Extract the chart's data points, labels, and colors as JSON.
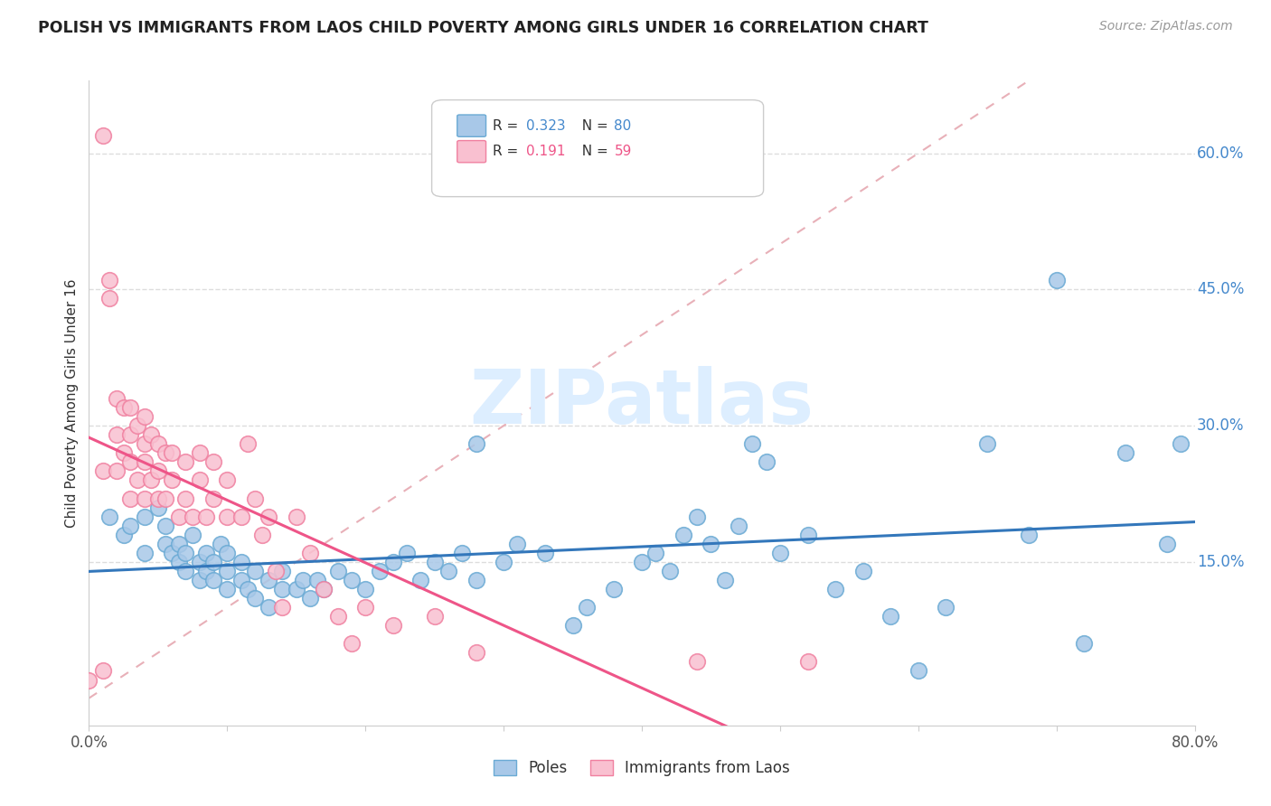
{
  "title": "POLISH VS IMMIGRANTS FROM LAOS CHILD POVERTY AMONG GIRLS UNDER 16 CORRELATION CHART",
  "source": "Source: ZipAtlas.com",
  "ylabel": "Child Poverty Among Girls Under 16",
  "xlim": [
    0.0,
    0.8
  ],
  "ylim": [
    -0.03,
    0.68
  ],
  "yticks_right": [
    0.15,
    0.3,
    0.45,
    0.6
  ],
  "ytick_right_labels": [
    "15.0%",
    "30.0%",
    "45.0%",
    "60.0%"
  ],
  "legend1_label": "Poles",
  "legend2_label": "Immigrants from Laos",
  "R1": "0.323",
  "N1": "80",
  "R2": "0.191",
  "N2": "59",
  "blue_scatter_color": "#a8c8e8",
  "blue_edge_color": "#6aaad4",
  "pink_scatter_color": "#f9c0d0",
  "pink_edge_color": "#f080a0",
  "blue_line_color": "#3377bb",
  "pink_line_color": "#ee5588",
  "diag_line_color": "#e8b0b8",
  "watermark_color": "#ddeeff",
  "grid_color": "#dddddd",
  "right_axis_color": "#4488cc",
  "watermark": "ZIPatlas",
  "poles_x": [
    0.015,
    0.025,
    0.03,
    0.04,
    0.04,
    0.05,
    0.055,
    0.055,
    0.06,
    0.065,
    0.065,
    0.07,
    0.07,
    0.075,
    0.08,
    0.08,
    0.085,
    0.085,
    0.09,
    0.09,
    0.095,
    0.1,
    0.1,
    0.1,
    0.11,
    0.11,
    0.115,
    0.12,
    0.12,
    0.13,
    0.13,
    0.14,
    0.14,
    0.15,
    0.155,
    0.16,
    0.165,
    0.17,
    0.18,
    0.19,
    0.2,
    0.21,
    0.22,
    0.23,
    0.24,
    0.25,
    0.26,
    0.27,
    0.28,
    0.28,
    0.3,
    0.31,
    0.33,
    0.35,
    0.36,
    0.38,
    0.4,
    0.41,
    0.42,
    0.43,
    0.44,
    0.45,
    0.46,
    0.47,
    0.48,
    0.49,
    0.5,
    0.52,
    0.54,
    0.56,
    0.58,
    0.6,
    0.62,
    0.65,
    0.68,
    0.7,
    0.72,
    0.75,
    0.78,
    0.79
  ],
  "poles_y": [
    0.2,
    0.18,
    0.19,
    0.2,
    0.16,
    0.21,
    0.17,
    0.19,
    0.16,
    0.15,
    0.17,
    0.14,
    0.16,
    0.18,
    0.13,
    0.15,
    0.14,
    0.16,
    0.13,
    0.15,
    0.17,
    0.12,
    0.14,
    0.16,
    0.13,
    0.15,
    0.12,
    0.11,
    0.14,
    0.1,
    0.13,
    0.12,
    0.14,
    0.12,
    0.13,
    0.11,
    0.13,
    0.12,
    0.14,
    0.13,
    0.12,
    0.14,
    0.15,
    0.16,
    0.13,
    0.15,
    0.14,
    0.16,
    0.13,
    0.28,
    0.15,
    0.17,
    0.16,
    0.08,
    0.1,
    0.12,
    0.15,
    0.16,
    0.14,
    0.18,
    0.2,
    0.17,
    0.13,
    0.19,
    0.28,
    0.26,
    0.16,
    0.18,
    0.12,
    0.14,
    0.09,
    0.03,
    0.1,
    0.28,
    0.18,
    0.46,
    0.06,
    0.27,
    0.17,
    0.28
  ],
  "laos_x": [
    0.0,
    0.01,
    0.01,
    0.01,
    0.015,
    0.015,
    0.02,
    0.02,
    0.02,
    0.025,
    0.025,
    0.03,
    0.03,
    0.03,
    0.03,
    0.035,
    0.035,
    0.04,
    0.04,
    0.04,
    0.04,
    0.045,
    0.045,
    0.05,
    0.05,
    0.05,
    0.055,
    0.055,
    0.06,
    0.06,
    0.065,
    0.07,
    0.07,
    0.075,
    0.08,
    0.08,
    0.085,
    0.09,
    0.09,
    0.1,
    0.1,
    0.11,
    0.115,
    0.12,
    0.125,
    0.13,
    0.135,
    0.14,
    0.15,
    0.16,
    0.17,
    0.18,
    0.19,
    0.2,
    0.22,
    0.25,
    0.28,
    0.44,
    0.52
  ],
  "laos_y": [
    0.02,
    0.62,
    0.25,
    0.03,
    0.46,
    0.44,
    0.33,
    0.29,
    0.25,
    0.32,
    0.27,
    0.32,
    0.29,
    0.26,
    0.22,
    0.3,
    0.24,
    0.31,
    0.28,
    0.26,
    0.22,
    0.29,
    0.24,
    0.28,
    0.25,
    0.22,
    0.27,
    0.22,
    0.27,
    0.24,
    0.2,
    0.26,
    0.22,
    0.2,
    0.27,
    0.24,
    0.2,
    0.26,
    0.22,
    0.24,
    0.2,
    0.2,
    0.28,
    0.22,
    0.18,
    0.2,
    0.14,
    0.1,
    0.2,
    0.16,
    0.12,
    0.09,
    0.06,
    0.1,
    0.08,
    0.09,
    0.05,
    0.04,
    0.04
  ]
}
